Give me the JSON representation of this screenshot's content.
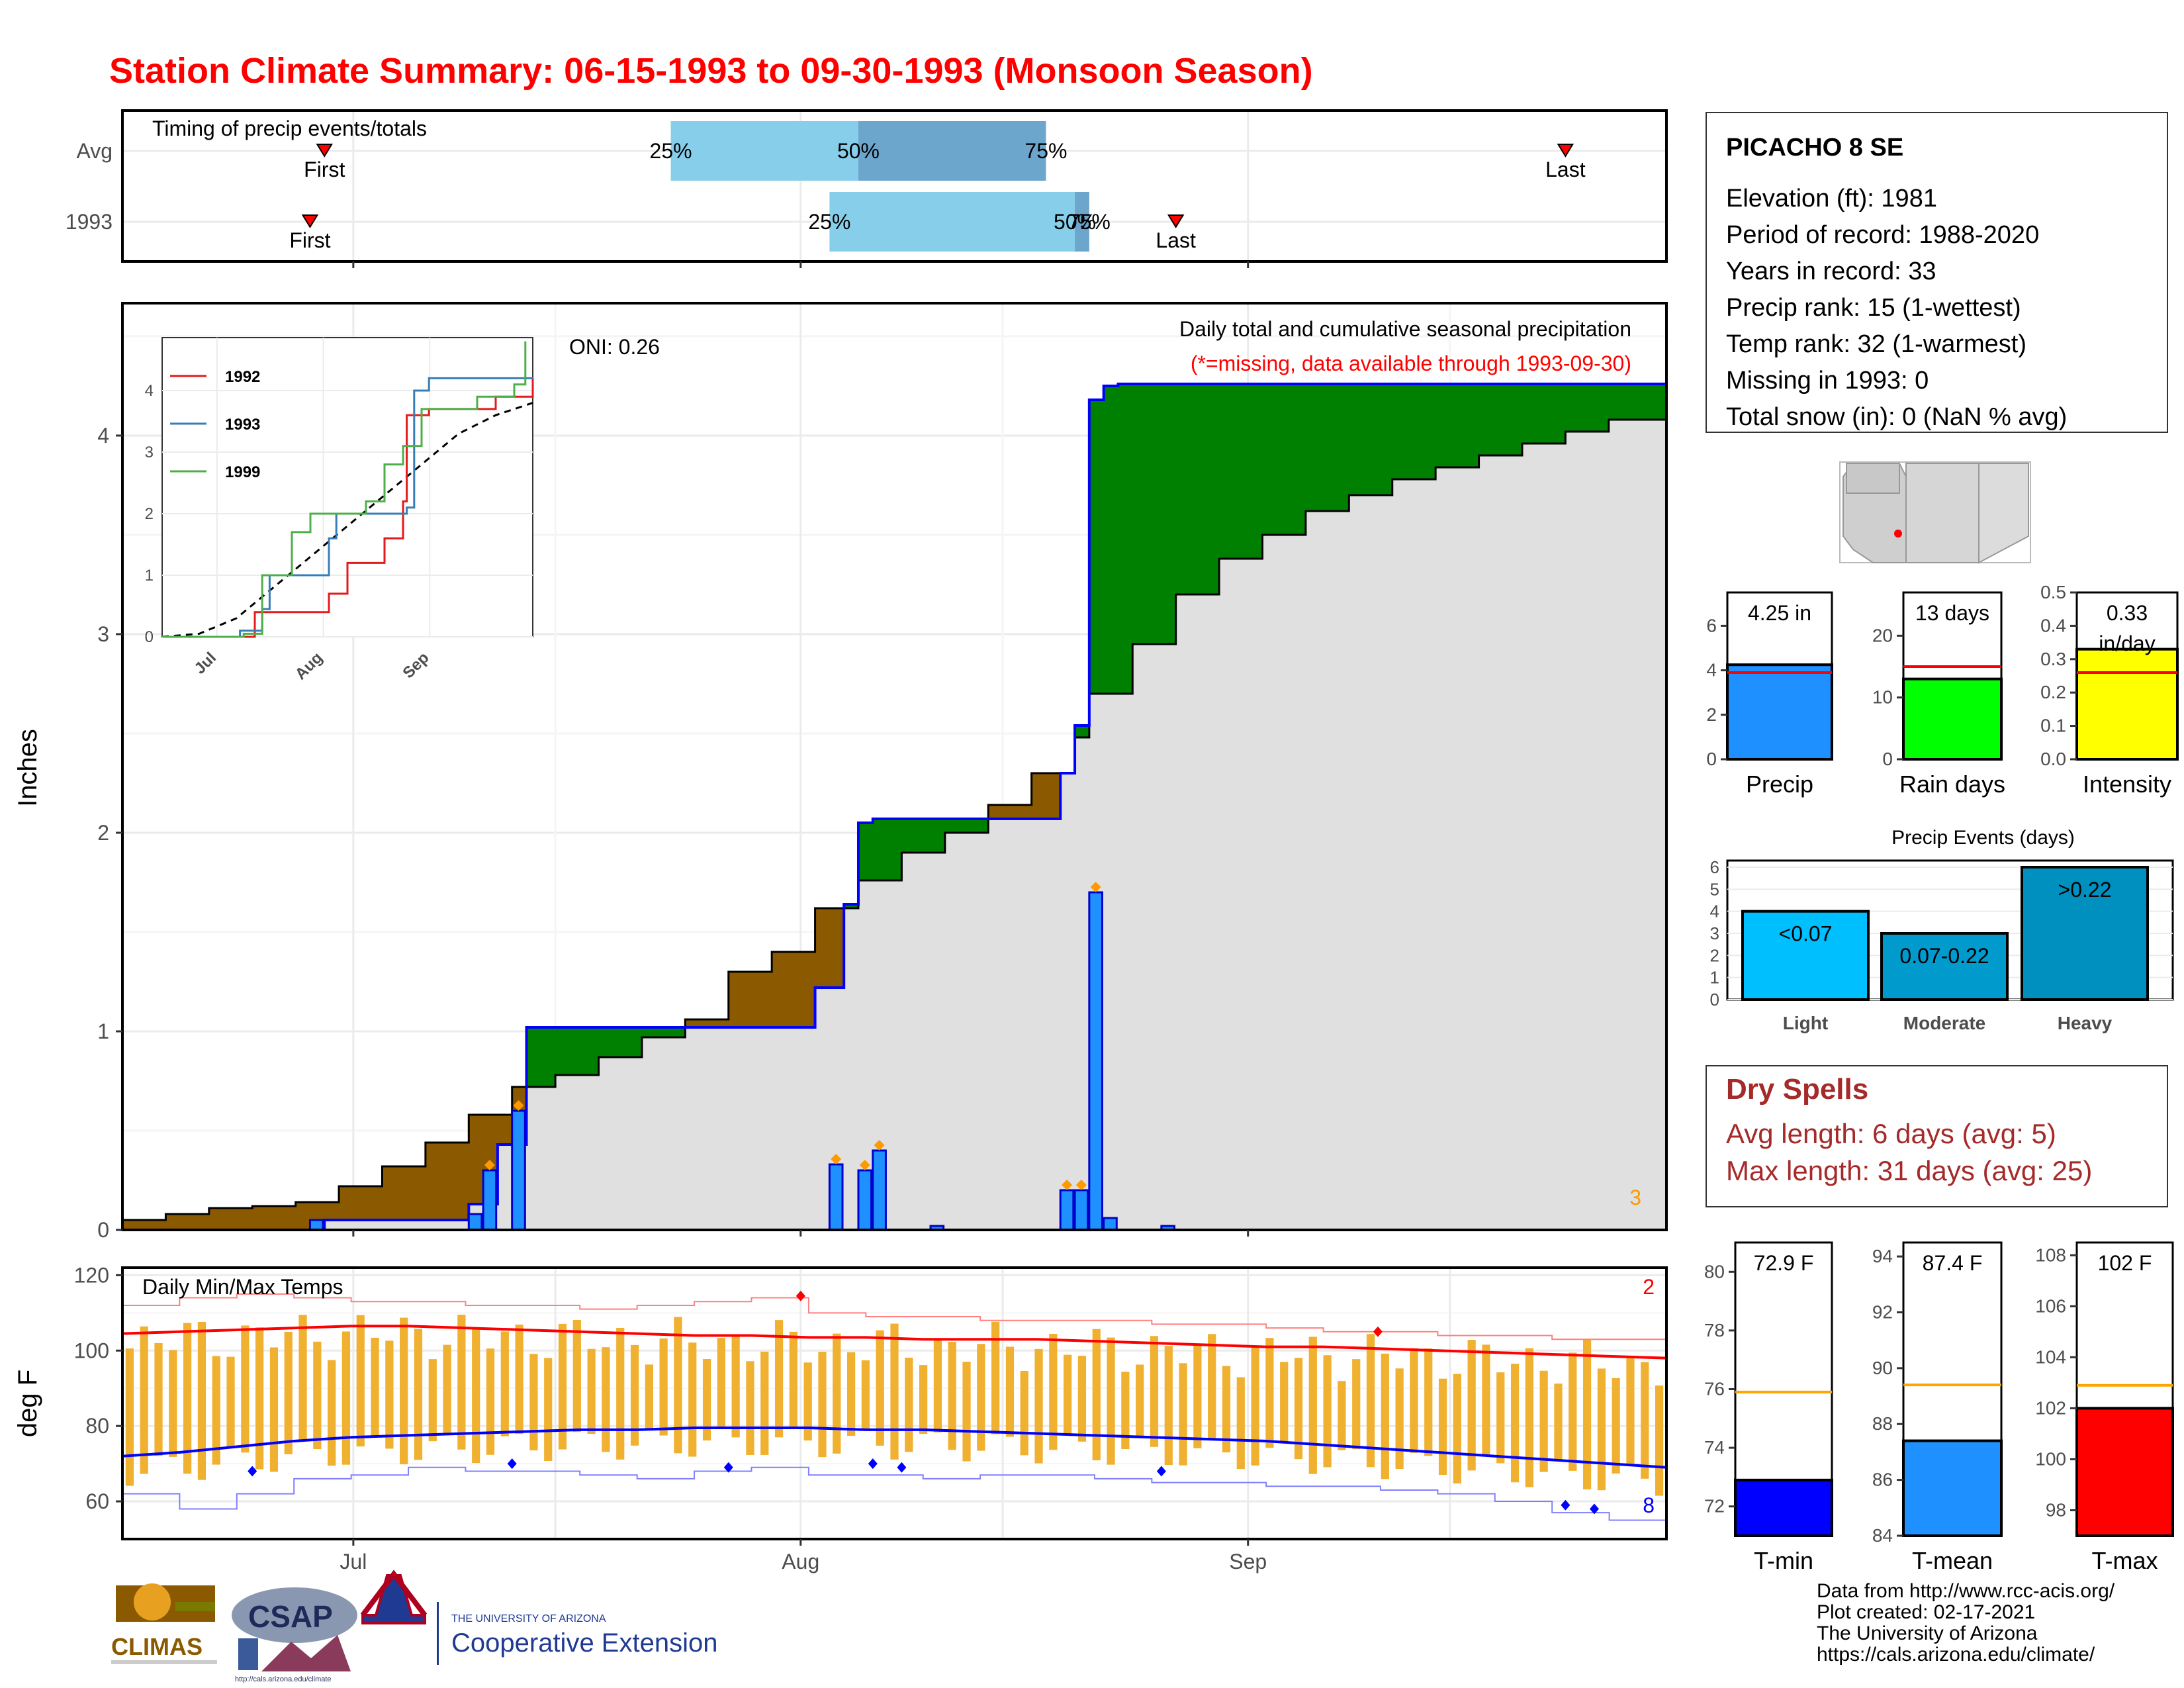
{
  "title": "Station Climate Summary: 06-15-1993 to 09-30-1993 (Monsoon Season)",
  "colors": {
    "title": "#ff0000",
    "precip_bar": "#1e90ff",
    "surplus": "#008000",
    "deficit": "#8b5a00",
    "avg_fill": "#e0e0e0",
    "tmin": "#0000ff",
    "tmean": "#1e90ff",
    "tmax": "#ff0000",
    "raindays": "#00ff00",
    "intensity": "#ffff00",
    "light": "#00bfff",
    "moderate": "#009acd",
    "heavy": "#0090c0",
    "temp_bar": "#f0b030",
    "dry": "#a52a2a"
  },
  "timing": {
    "label": "Timing of precip events/totals",
    "rows": [
      {
        "name": "Avg",
        "first_date": "1993-06-29",
        "last_date": "1993-09-23",
        "p25_date": "1993-07-23",
        "p50_date": "1993-08-05",
        "p75_date": "1993-08-18",
        "first_label": "First",
        "last_label": "Last",
        "p25": "25%",
        "p50": "50%",
        "p75": "75%"
      },
      {
        "name": "1993",
        "first_date": "1993-06-28",
        "last_date": "1993-08-27",
        "p25_date": "1993-08-03",
        "p50_date": "1993-08-20",
        "p75_date": "1993-08-21",
        "first_label": "First",
        "last_label": "Last",
        "p25": "25%",
        "p50": "50%",
        "p75": "75%"
      }
    ]
  },
  "precip_panel": {
    "ylabel": "Inches",
    "oni": "ONI: 0.26",
    "subtitle": "Daily total and cumulative seasonal precipitation",
    "missing_note": "(*=missing, data available through 1993-09-30)",
    "corner_count": "3",
    "x_ticks": [
      "Jul",
      "Aug",
      "Sep"
    ],
    "y_ticks": [
      "0",
      "1",
      "2",
      "3",
      "4"
    ]
  },
  "inset": {
    "x_ticks": [
      "Jul",
      "Aug",
      "Sep"
    ],
    "y_ticks": [
      "0",
      "1",
      "2",
      "3",
      "4"
    ],
    "legend": [
      "1992",
      "1993",
      "1999"
    ]
  },
  "temp_panel": {
    "ylabel": "deg F",
    "label": "Daily Min/Max Temps",
    "corner_max": "2",
    "corner_min": "8",
    "x_ticks": [
      "Jul",
      "Aug",
      "Sep"
    ],
    "y_ticks": [
      "60",
      "80",
      "100",
      "120"
    ]
  },
  "station": {
    "name": "PICACHO 8 SE",
    "lines": [
      "Elevation (ft): 1981",
      "Period of record: 1988-2020",
      "Years in record: 33",
      "Precip rank: 15 (1-wettest)",
      "Temp rank: 32 (1-warmest)",
      "Missing in 1993: 0",
      "Total snow (in): 0 (NaN % avg)"
    ]
  },
  "summary_bars": [
    {
      "label": "Precip",
      "value": 4.25,
      "avg": 3.9,
      "max": 7.5,
      "value_text": "4.25 in",
      "unit_text": "",
      "ticks": [
        "0",
        "2",
        "4",
        "6"
      ]
    },
    {
      "label": "Rain days",
      "value": 13,
      "avg": 15,
      "max": 27,
      "value_text": "13 days",
      "unit_text": "",
      "ticks": [
        "0",
        "10",
        "20"
      ]
    },
    {
      "label": "Intensity",
      "value": 0.33,
      "avg": 0.26,
      "max": 0.5,
      "value_text": "0.33",
      "unit_text": "in/day",
      "ticks": [
        "0.0",
        "0.1",
        "0.2",
        "0.3",
        "0.4",
        "0.5"
      ]
    }
  ],
  "events": {
    "title": "Precip Events (days)",
    "bars": [
      {
        "category": "Light",
        "value": 4,
        "label": "<0.07"
      },
      {
        "category": "Moderate",
        "value": 3,
        "label": "0.07-0.22"
      },
      {
        "category": "Heavy",
        "value": 6,
        "label": ">0.22"
      }
    ],
    "ticks": [
      "0",
      "1",
      "2",
      "3",
      "4",
      "5",
      "6"
    ]
  },
  "dry_spells": {
    "title": "Dry Spells",
    "avg_line": "Avg length: 6 days (avg: 5)",
    "max_line": "Max length: 31 days (avg: 25)"
  },
  "temp_bars": [
    {
      "label": "T-min",
      "value": 72.9,
      "avg": 75.9,
      "min": 71,
      "max": 81,
      "value_text": "72.9 F",
      "ticks": [
        "72",
        "74",
        "76",
        "78",
        "80"
      ]
    },
    {
      "label": "T-mean",
      "value": 87.4,
      "avg": 89.4,
      "min": 84,
      "max": 94.5,
      "value_text": "87.4 F",
      "ticks": [
        "84",
        "86",
        "88",
        "90",
        "92",
        "94"
      ]
    },
    {
      "label": "T-max",
      "value": 102,
      "avg": 102.9,
      "min": 97,
      "max": 108.5,
      "value_text": "102 F",
      "ticks": [
        "98",
        "100",
        "102",
        "104",
        "106",
        "108"
      ]
    }
  ],
  "footer": {
    "lines": [
      "Data from http://www.rcc-acis.org/",
      "Plot created: 02-17-2021",
      "The University of Arizona",
      "https://cals.arizona.edu/climate/"
    ]
  },
  "logos": {
    "climas": "CLIMAS",
    "csap": "CSAP",
    "csap_url": "http://cals.arizona.edu/climate",
    "ua_small": "THE UNIVERSITY OF ARIZONA",
    "ua_big": "Cooperative Extension"
  },
  "chart_data": {
    "type": "area",
    "x_range": [
      "1993-06-15",
      "1993-09-30"
    ],
    "precip_ylim": [
      0,
      4.6
    ],
    "series": [
      {
        "name": "",
        "x": [
          "06-15",
          "06-18",
          "06-21",
          "06-24",
          "06-27",
          "06-30",
          "07-03",
          "07-06",
          "07-09",
          "07-12",
          "07-15",
          "07-18",
          "07-21",
          "07-24",
          "07-27",
          "07-30",
          "08-02",
          "08-05",
          "08-08",
          "08-11",
          "08-14",
          "08-17",
          "08-20",
          "08-21",
          "08-24",
          "08-27",
          "08-30",
          "09-02",
          "09-05",
          "09-08",
          "09-11",
          "09-14",
          "09-17",
          "09-20",
          "09-23",
          "09-26",
          "09-30"
        ],
        "values": [
          0.05,
          0.08,
          0.11,
          0.12,
          0.14,
          0.22,
          0.32,
          0.44,
          0.58,
          0.72,
          0.78,
          0.87,
          0.97,
          1.06,
          1.3,
          1.4,
          1.62,
          1.76,
          1.9,
          2.0,
          2.14,
          2.3,
          2.48,
          2.7,
          2.95,
          3.2,
          3.38,
          3.5,
          3.62,
          3.7,
          3.78,
          3.84,
          3.9,
          3.96,
          4.02,
          4.08,
          4.14
        ]
      },
      {
        "name": "",
        "x": [
          "06-15",
          "06-28",
          "06-29",
          "07-08",
          "07-09",
          "07-11",
          "07-12",
          "07-13",
          "07-24",
          "08-02",
          "08-04",
          "08-05",
          "08-06",
          "08-12",
          "08-18",
          "08-19",
          "08-20",
          "08-21",
          "08-22",
          "08-23",
          "08-26",
          "09-30"
        ],
        "values": [
          0.0,
          0.0,
          0.05,
          0.05,
          0.13,
          0.43,
          0.43,
          1.02,
          1.02,
          1.22,
          1.64,
          2.05,
          2.07,
          2.07,
          2.07,
          2.3,
          2.54,
          4.18,
          4.25,
          4.26,
          4.26,
          4.25
        ]
      }
    ],
    "daily": {
      "x": [
        "06-28",
        "07-09",
        "07-10",
        "07-12",
        "08-03",
        "08-05",
        "08-06",
        "08-10",
        "08-19",
        "08-20",
        "08-21",
        "08-22",
        "08-26"
      ],
      "values": [
        0.05,
        0.08,
        0.3,
        0.6,
        0.33,
        0.3,
        0.4,
        0.02,
        0.2,
        0.2,
        1.7,
        0.06,
        0.02
      ]
    },
    "temperature": {
      "ylim": [
        50,
        122
      ],
      "avg_max": [
        104.5,
        105,
        105.5,
        106,
        106.5,
        106.5,
        106,
        105.5,
        105,
        104.5,
        104,
        104,
        103.5,
        103.5,
        103,
        103,
        103,
        102.5,
        102,
        101.5,
        101,
        101,
        100.5,
        100,
        99.5,
        99,
        98.5,
        98
      ],
      "avg_min": [
        72,
        73,
        74.5,
        76,
        77,
        77.5,
        78,
        78.5,
        79,
        79,
        79.5,
        79.5,
        79.5,
        79,
        79,
        78.5,
        78,
        77.5,
        77,
        76.5,
        76,
        75,
        74,
        73,
        72,
        71,
        70,
        69
      ],
      "record_max": [
        112,
        114,
        115,
        114,
        113,
        113,
        112,
        112,
        111,
        112,
        113,
        114,
        110,
        109,
        109,
        108,
        108,
        108,
        107,
        107,
        106,
        105,
        105,
        104,
        104,
        103,
        103,
        102
      ],
      "record_min": [
        62,
        58,
        62,
        66,
        67,
        69,
        68,
        68,
        67,
        66,
        68,
        69,
        67,
        67,
        66,
        67,
        67,
        66,
        65,
        65,
        64,
        64,
        63,
        62,
        60,
        57,
        55,
        54
      ]
    }
  }
}
